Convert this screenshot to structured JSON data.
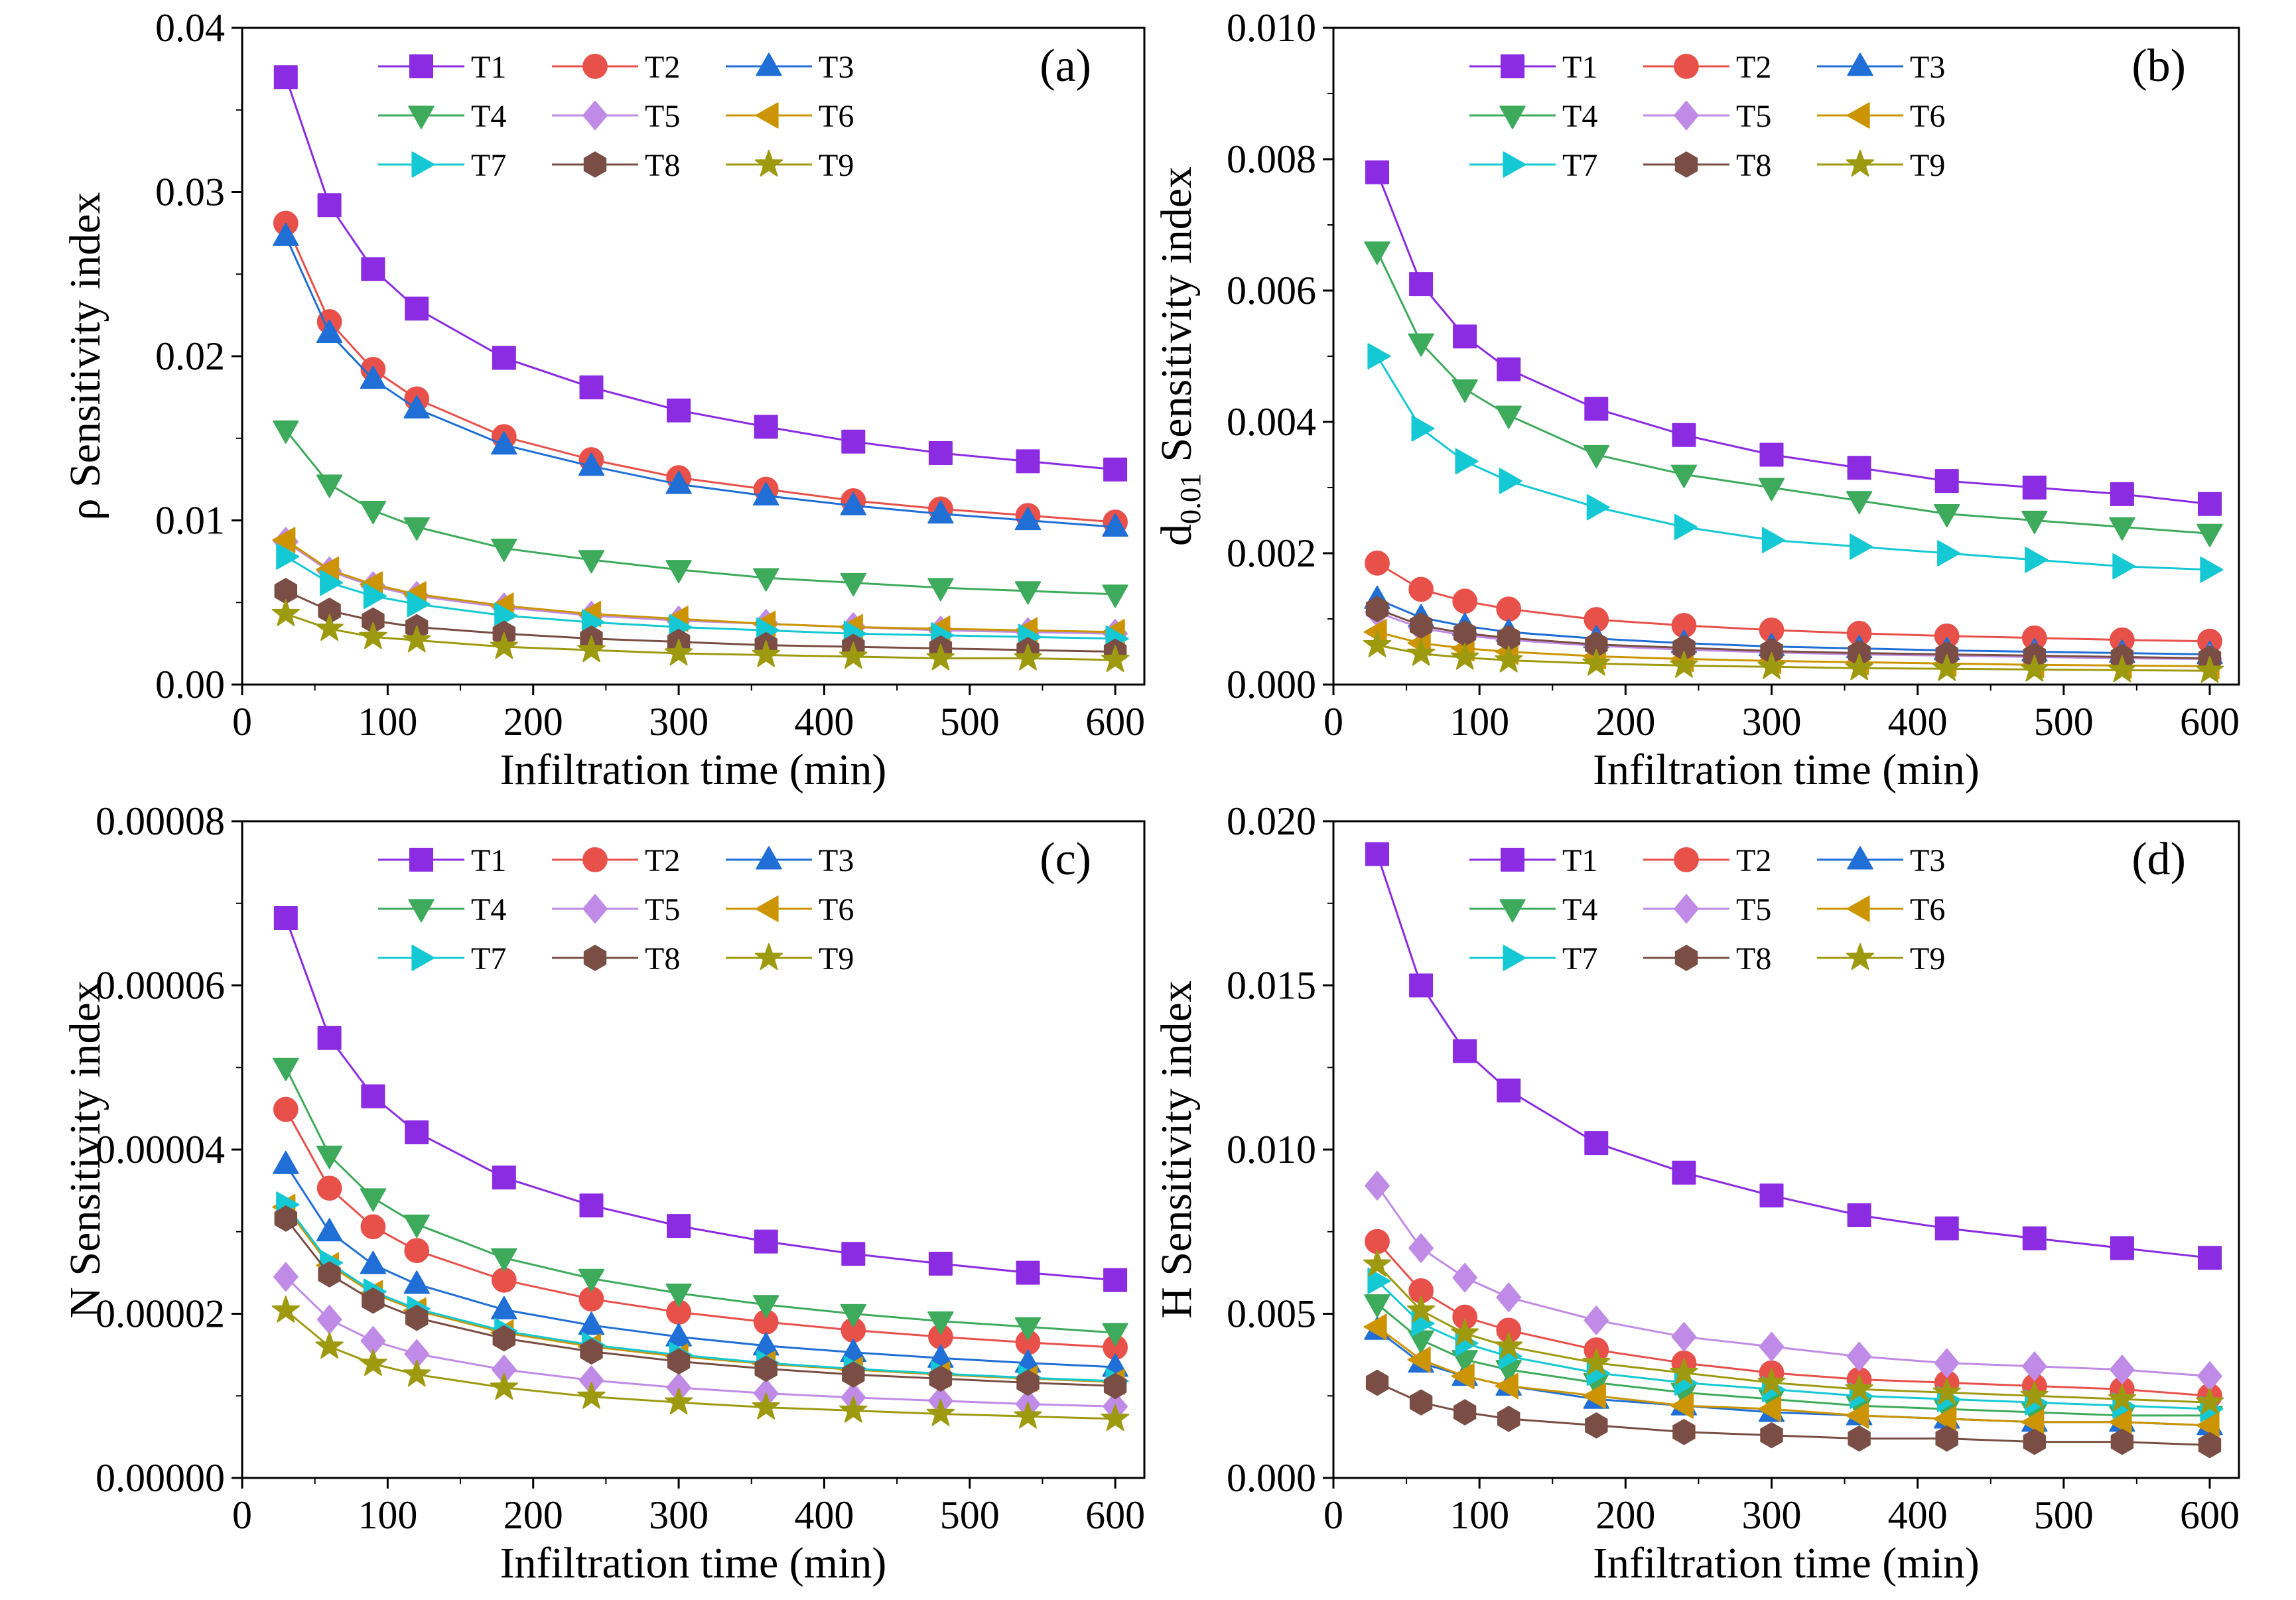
{
  "figure": {
    "type": "multi-panel line chart"
  },
  "colors": {
    "T1": "#8B2BE2",
    "T2": "#E8504A",
    "T3": "#1F6FD6",
    "T4": "#3DAA5C",
    "T5": "#C08BE6",
    "T6": "#CC9400",
    "T7": "#14C8D4",
    "T8": "#7A4E44",
    "T9": "#9E9A10"
  },
  "markers": {
    "T1": "square",
    "T2": "circle",
    "T3": "triangle-up",
    "T4": "triangle-down",
    "T5": "diamond",
    "T6": "triangle-left",
    "T7": "triangle-right",
    "T8": "hexagon",
    "T9": "star"
  },
  "chart_data": [
    {
      "type": "line",
      "panel_label": "(a)",
      "xlabel": "Infiltration time (min)",
      "ylabel_prefix": "ρ",
      "ylabel_sub": "",
      "ylabel_suffix": " Sensitivity index",
      "xlim": [
        0,
        620
      ],
      "ylim": [
        0,
        0.04
      ],
      "xticks": [
        0,
        100,
        200,
        300,
        400,
        500,
        600
      ],
      "xtick_labels": [
        "0",
        "100",
        "200",
        "300",
        "400",
        "500",
        "600"
      ],
      "yticks": [
        0,
        0.01,
        0.02,
        0.03,
        0.04
      ],
      "ytick_labels": [
        "0.00",
        "0.01",
        "0.02",
        "0.03",
        "0.04"
      ],
      "x": [
        30,
        60,
        90,
        120,
        180,
        240,
        300,
        360,
        420,
        480,
        540,
        600
      ],
      "series": [
        {
          "name": "T1",
          "values": [
            0.037,
            0.0292,
            0.0253,
            0.0229,
            0.0199,
            0.0181,
            0.0167,
            0.0157,
            0.0148,
            0.0141,
            0.0136,
            0.0131
          ]
        },
        {
          "name": "T2",
          "values": [
            0.0281,
            0.0221,
            0.0192,
            0.0174,
            0.0151,
            0.0137,
            0.0126,
            0.0119,
            0.0112,
            0.0107,
            0.0103,
            0.0099
          ]
        },
        {
          "name": "T3",
          "values": [
            0.0273,
            0.0214,
            0.0186,
            0.0168,
            0.0146,
            0.0133,
            0.0122,
            0.0115,
            0.0109,
            0.0104,
            0.01,
            0.0096
          ]
        },
        {
          "name": "T4",
          "values": [
            0.0155,
            0.0122,
            0.0106,
            0.0096,
            0.0083,
            0.0076,
            0.007,
            0.0065,
            0.0062,
            0.0059,
            0.0057,
            0.0055
          ]
        },
        {
          "name": "T5",
          "values": [
            0.0087,
            0.0069,
            0.006,
            0.0054,
            0.0047,
            0.0042,
            0.0039,
            0.0037,
            0.0035,
            0.0033,
            0.0032,
            0.0031
          ]
        },
        {
          "name": "T6",
          "values": [
            0.0088,
            0.007,
            0.0061,
            0.0055,
            0.0048,
            0.0043,
            0.004,
            0.0037,
            0.0035,
            0.0034,
            0.0033,
            0.0032
          ]
        },
        {
          "name": "T7",
          "values": [
            0.0078,
            0.0062,
            0.0054,
            0.0049,
            0.0042,
            0.0038,
            0.0035,
            0.0033,
            0.0031,
            0.003,
            0.0029,
            0.0028
          ]
        },
        {
          "name": "T8",
          "values": [
            0.0057,
            0.0045,
            0.0039,
            0.0035,
            0.0031,
            0.0028,
            0.0026,
            0.0024,
            0.0023,
            0.0022,
            0.0021,
            0.002
          ]
        },
        {
          "name": "T9",
          "values": [
            0.0043,
            0.0034,
            0.0029,
            0.0027,
            0.0023,
            0.0021,
            0.0019,
            0.0018,
            0.0017,
            0.0016,
            0.0016,
            0.0015
          ]
        }
      ],
      "legend_position": "top"
    },
    {
      "type": "line",
      "panel_label": "(b)",
      "xlabel": "Infiltration time (min)",
      "ylabel_prefix": "d",
      "ylabel_sub": "0.01",
      "ylabel_suffix": " Sensitivity index",
      "xlim": [
        0,
        620
      ],
      "ylim": [
        0,
        0.01
      ],
      "xticks": [
        0,
        100,
        200,
        300,
        400,
        500,
        600
      ],
      "xtick_labels": [
        "0",
        "100",
        "200",
        "300",
        "400",
        "500",
        "600"
      ],
      "yticks": [
        0,
        0.002,
        0.004,
        0.006,
        0.008,
        0.01
      ],
      "ytick_labels": [
        "0.000",
        "0.002",
        "0.004",
        "0.006",
        "0.008",
        "0.010"
      ],
      "x": [
        30,
        60,
        90,
        120,
        180,
        240,
        300,
        360,
        420,
        480,
        540,
        600
      ],
      "series": [
        {
          "name": "T1",
          "values": [
            0.0078,
            0.0061,
            0.0053,
            0.0048,
            0.0042,
            0.0038,
            0.0035,
            0.0033,
            0.0031,
            0.003,
            0.0029,
            0.00275
          ]
        },
        {
          "name": "T2",
          "values": [
            0.00185,
            0.00145,
            0.00127,
            0.00115,
            0.00099,
            0.0009,
            0.00083,
            0.00078,
            0.00074,
            0.00071,
            0.00068,
            0.00066
          ]
        },
        {
          "name": "T3",
          "values": [
            0.0013,
            0.00102,
            0.00089,
            0.0008,
            0.0007,
            0.00063,
            0.00058,
            0.00055,
            0.00052,
            0.0005,
            0.00048,
            0.00046
          ]
        },
        {
          "name": "T4",
          "values": [
            0.0066,
            0.0052,
            0.0045,
            0.0041,
            0.0035,
            0.0032,
            0.003,
            0.0028,
            0.0026,
            0.0025,
            0.0024,
            0.0023
          ]
        },
        {
          "name": "T5",
          "values": [
            0.0011,
            0.00086,
            0.00075,
            0.00068,
            0.00059,
            0.00053,
            0.00049,
            0.00046,
            0.00044,
            0.00042,
            0.0004,
            0.00039
          ]
        },
        {
          "name": "T6",
          "values": [
            0.0008,
            0.00063,
            0.00055,
            0.0005,
            0.00043,
            0.00039,
            0.00036,
            0.00034,
            0.00032,
            0.0003,
            0.00029,
            0.00028
          ]
        },
        {
          "name": "T7",
          "values": [
            0.005,
            0.0039,
            0.0034,
            0.0031,
            0.0027,
            0.0024,
            0.0022,
            0.0021,
            0.002,
            0.0019,
            0.0018,
            0.00175
          ]
        },
        {
          "name": "T8",
          "values": [
            0.00115,
            0.0009,
            0.00078,
            0.00071,
            0.00061,
            0.00056,
            0.00051,
            0.00048,
            0.00046,
            0.00044,
            0.00042,
            0.0004
          ]
        },
        {
          "name": "T9",
          "values": [
            0.0006,
            0.00047,
            0.00041,
            0.00037,
            0.00032,
            0.00029,
            0.00027,
            0.00025,
            0.00024,
            0.00023,
            0.00022,
            0.00021
          ]
        }
      ],
      "legend_position": "top"
    },
    {
      "type": "line",
      "panel_label": "(c)",
      "xlabel": "Infiltration time (min)",
      "ylabel_prefix": "N",
      "ylabel_sub": "",
      "ylabel_suffix": " Sensitivity index",
      "xlim": [
        0,
        620
      ],
      "ylim": [
        0,
        8e-05
      ],
      "xticks": [
        0,
        100,
        200,
        300,
        400,
        500,
        600
      ],
      "xtick_labels": [
        "0",
        "100",
        "200",
        "300",
        "400",
        "500",
        "600"
      ],
      "yticks": [
        0,
        2e-05,
        4e-05,
        6e-05,
        8e-05
      ],
      "ytick_labels": [
        "0.00000",
        "0.00002",
        "0.00004",
        "0.00006",
        "0.00008"
      ],
      "x": [
        30,
        60,
        90,
        120,
        180,
        240,
        300,
        360,
        420,
        480,
        540,
        600
      ],
      "series": [
        {
          "name": "T1",
          "values": [
            6.82e-05,
            5.36e-05,
            4.65e-05,
            4.21e-05,
            3.66e-05,
            3.32e-05,
            3.07e-05,
            2.88e-05,
            2.73e-05,
            2.61e-05,
            2.5e-05,
            2.41e-05
          ]
        },
        {
          "name": "T2",
          "values": [
            4.49e-05,
            3.53e-05,
            3.06e-05,
            2.77e-05,
            2.41e-05,
            2.18e-05,
            2.02e-05,
            1.9e-05,
            1.8e-05,
            1.72e-05,
            1.65e-05,
            1.59e-05
          ]
        },
        {
          "name": "T3",
          "values": [
            3.82e-05,
            3e-05,
            2.6e-05,
            2.36e-05,
            2.05e-05,
            1.86e-05,
            1.72e-05,
            1.61e-05,
            1.53e-05,
            1.46e-05,
            1.4e-05,
            1.35e-05
          ]
        },
        {
          "name": "T4",
          "values": [
            5e-05,
            3.93e-05,
            3.41e-05,
            3.09e-05,
            2.68e-05,
            2.43e-05,
            2.25e-05,
            2.11e-05,
            2e-05,
            1.91e-05,
            1.84e-05,
            1.77e-05
          ]
        },
        {
          "name": "T5",
          "values": [
            2.45e-05,
            1.93e-05,
            1.67e-05,
            1.51e-05,
            1.32e-05,
            1.19e-05,
            1.1e-05,
            1.03e-05,
            9.8e-06,
            9.4e-06,
            9e-06,
            8.7e-06
          ]
        },
        {
          "name": "T6",
          "values": [
            3.3e-05,
            2.59e-05,
            2.25e-05,
            2.04e-05,
            1.77e-05,
            1.6e-05,
            1.48e-05,
            1.39e-05,
            1.32e-05,
            1.26e-05,
            1.21e-05,
            1.17e-05
          ]
        },
        {
          "name": "T7",
          "values": [
            3.33e-05,
            2.62e-05,
            2.27e-05,
            2.06e-05,
            1.79e-05,
            1.62e-05,
            1.5e-05,
            1.4e-05,
            1.33e-05,
            1.27e-05,
            1.22e-05,
            1.18e-05
          ]
        },
        {
          "name": "T8",
          "values": [
            3.16e-05,
            2.48e-05,
            2.16e-05,
            1.95e-05,
            1.7e-05,
            1.54e-05,
            1.42e-05,
            1.33e-05,
            1.26e-05,
            1.21e-05,
            1.16e-05,
            1.12e-05
          ]
        },
        {
          "name": "T9",
          "values": [
            2.04e-05,
            1.6e-05,
            1.39e-05,
            1.26e-05,
            1.1e-05,
            9.9e-06,
            9.2e-06,
            8.6e-06,
            8.2e-06,
            7.8e-06,
            7.5e-06,
            7.2e-06
          ]
        }
      ],
      "legend_position": "top"
    },
    {
      "type": "line",
      "panel_label": "(d)",
      "xlabel": "Infiltration time (min)",
      "ylabel_prefix": "H",
      "ylabel_sub": "",
      "ylabel_suffix": " Sensitivity index",
      "xlim": [
        0,
        620
      ],
      "ylim": [
        0,
        0.02
      ],
      "xticks": [
        0,
        100,
        200,
        300,
        400,
        500,
        600
      ],
      "xtick_labels": [
        "0",
        "100",
        "200",
        "300",
        "400",
        "500",
        "600"
      ],
      "yticks": [
        0,
        0.005,
        0.01,
        0.015,
        0.02
      ],
      "ytick_labels": [
        "0.000",
        "0.005",
        "0.010",
        "0.015",
        "0.020"
      ],
      "x": [
        30,
        60,
        90,
        120,
        180,
        240,
        300,
        360,
        420,
        480,
        540,
        600
      ],
      "series": [
        {
          "name": "T1",
          "values": [
            0.019,
            0.015,
            0.013,
            0.0118,
            0.0102,
            0.0093,
            0.0086,
            0.008,
            0.0076,
            0.0073,
            0.007,
            0.0067
          ]
        },
        {
          "name": "T2",
          "values": [
            0.0072,
            0.0057,
            0.0049,
            0.0045,
            0.0039,
            0.0035,
            0.0032,
            0.003,
            0.0029,
            0.0028,
            0.0027,
            0.0025
          ]
        },
        {
          "name": "T3",
          "values": [
            0.0045,
            0.0035,
            0.0031,
            0.0028,
            0.0024,
            0.0022,
            0.002,
            0.0019,
            0.0018,
            0.0017,
            0.0017,
            0.0016
          ]
        },
        {
          "name": "T4",
          "values": [
            0.0053,
            0.0042,
            0.0036,
            0.0033,
            0.0029,
            0.0026,
            0.0024,
            0.0022,
            0.0021,
            0.002,
            0.0019,
            0.0019
          ]
        },
        {
          "name": "T5",
          "values": [
            0.0089,
            0.007,
            0.0061,
            0.0055,
            0.0048,
            0.0043,
            0.004,
            0.0037,
            0.0035,
            0.0034,
            0.0033,
            0.0031
          ]
        },
        {
          "name": "T6",
          "values": [
            0.0046,
            0.0036,
            0.0031,
            0.0028,
            0.0025,
            0.0022,
            0.0021,
            0.0019,
            0.0018,
            0.0017,
            0.0017,
            0.0016
          ]
        },
        {
          "name": "T7",
          "values": [
            0.006,
            0.0047,
            0.0041,
            0.0037,
            0.0032,
            0.0029,
            0.0027,
            0.0025,
            0.0024,
            0.0023,
            0.0022,
            0.0021
          ]
        },
        {
          "name": "T8",
          "values": [
            0.0029,
            0.0023,
            0.002,
            0.0018,
            0.0016,
            0.0014,
            0.0013,
            0.0012,
            0.0012,
            0.0011,
            0.0011,
            0.001
          ]
        },
        {
          "name": "T9",
          "values": [
            0.0065,
            0.0051,
            0.0044,
            0.004,
            0.0035,
            0.0032,
            0.0029,
            0.0027,
            0.0026,
            0.0025,
            0.0024,
            0.0023
          ]
        }
      ],
      "legend_position": "top"
    }
  ]
}
